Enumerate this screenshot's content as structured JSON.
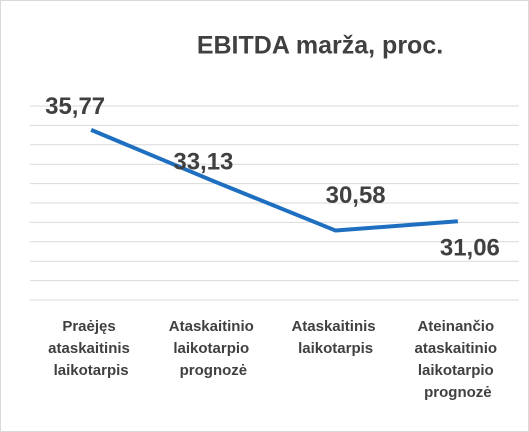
{
  "chart_data": {
    "type": "line",
    "title": "EBITDA marža, proc.",
    "categories": [
      "Praėjęs ataskaitinis laikotarpis",
      "Ataskaitinio laikotarpio prognozė",
      "Ataskaitinis laikotarpis",
      "Ateinančio ataskaitinio laikotarpio prognozė"
    ],
    "series": [
      {
        "name": "EBITDA marža, proc.",
        "color": "#1f6fc0",
        "values": [
          35.77,
          33.13,
          30.58,
          31.06
        ],
        "value_labels": [
          "35,77",
          "33,13",
          "30,58",
          "31,06"
        ]
      }
    ],
    "ylim": [
      27,
      37
    ],
    "yticks": [
      27,
      28,
      29,
      30,
      31,
      32,
      33,
      34,
      35,
      36,
      37
    ],
    "grid": true
  }
}
